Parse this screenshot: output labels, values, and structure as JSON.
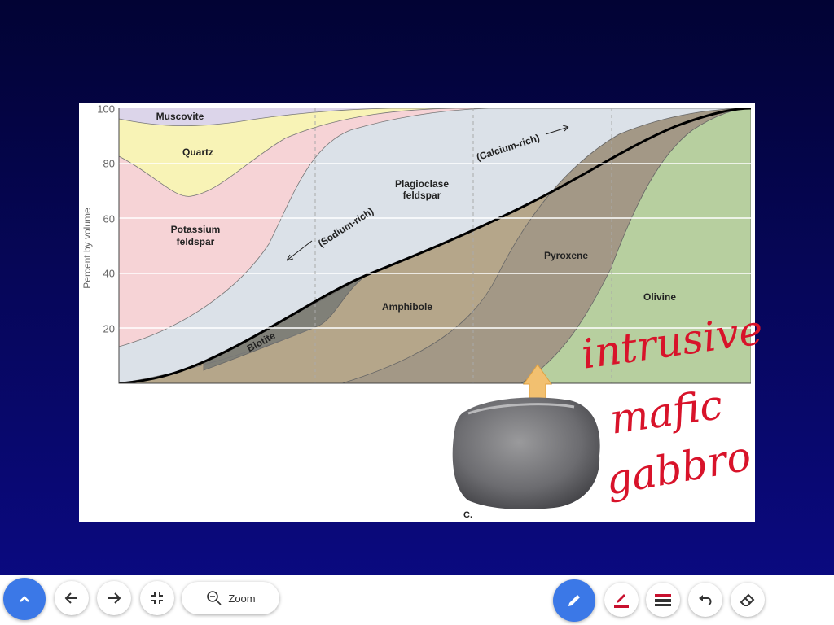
{
  "slide": {
    "y_axis_label": "Percent by volume",
    "yticks": [
      "100",
      "80",
      "60",
      "40",
      "20"
    ],
    "minerals": {
      "muscovite": "Muscovite",
      "quartz": "Quartz",
      "potassium_feldspar": [
        "Potassium",
        "feldspar"
      ],
      "plagioclase_feldspar": [
        "Plagioclase",
        "feldspar"
      ],
      "sodium_rich": "(Sodium-rich)",
      "calcium_rich": "(Calcium-rich)",
      "biotite": "Biotite",
      "amphibole": "Amphibole",
      "pyroxene": "Pyroxene",
      "olivine": "Olivine"
    },
    "photo_label": "C.",
    "handwriting": [
      "intrusive",
      "mafic",
      "gabbro"
    ]
  },
  "toolbar": {
    "zoom": "Zoom"
  }
}
